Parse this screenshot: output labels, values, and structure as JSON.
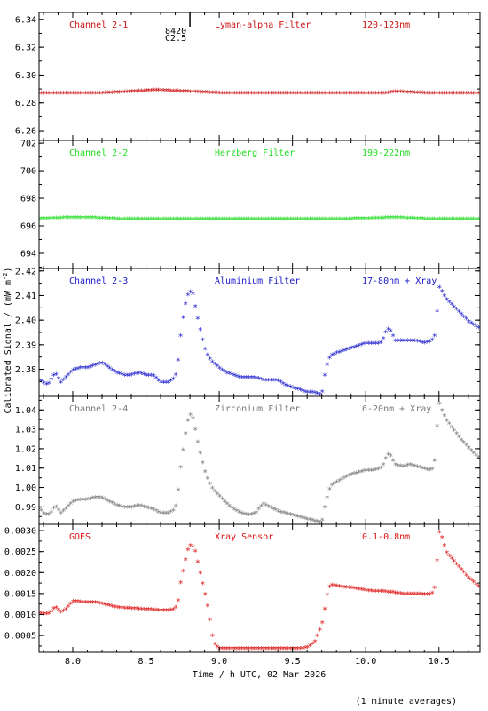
{
  "chart_data": {
    "type": "scatter",
    "xlabel": "Time / h UTC, 02 Mar 2026",
    "ylabel": "Calibrated Signal / (mW m",
    "ylabel_exp": "-2",
    "ylabel_close": ")",
    "xlim": [
      7.77,
      10.78
    ],
    "xticks": [
      "8.0",
      "8.5",
      "9.0",
      "9.5",
      "10.0",
      "10.5"
    ],
    "xtick_values": [
      8.0,
      8.5,
      9.0,
      9.5,
      10.0,
      10.5
    ],
    "footnote": "(1 minute averages)",
    "marker_annotation": {
      "x": 8.8,
      "line1": "8420",
      "line2": "C2.5"
    },
    "panels": [
      {
        "name": "Channel 2-1",
        "filter": "Lyman-alpha Filter",
        "range": "120-123nm",
        "color": "#cc1111",
        "ylim": [
          6.253,
          6.345
        ],
        "yticks": [
          "6.26",
          "6.28",
          "6.30",
          "6.32",
          "6.34"
        ],
        "ytick_values": [
          6.26,
          6.28,
          6.3,
          6.32,
          6.34
        ],
        "x": [
          7.77,
          8.0,
          8.2,
          8.4,
          8.55,
          8.6,
          8.8,
          9.0,
          9.2,
          9.4,
          9.6,
          9.8,
          10.0,
          10.15,
          10.2,
          10.4,
          10.6,
          10.78
        ],
        "y": [
          6.286,
          6.286,
          6.286,
          6.287,
          6.288,
          6.288,
          6.287,
          6.286,
          6.286,
          6.286,
          6.286,
          6.286,
          6.286,
          6.286,
          6.287,
          6.286,
          6.286,
          6.286
        ]
      },
      {
        "name": "Channel 2-2",
        "filter": "Herzberg Filter",
        "range": "190-222nm",
        "color": "#22dd22",
        "ylim": [
          692.9,
          702.2
        ],
        "yticks": [
          "694",
          "696",
          "698",
          "700",
          "702"
        ],
        "ytick_values": [
          694,
          696,
          698,
          700,
          702
        ],
        "x": [
          7.77,
          8.0,
          8.1,
          8.3,
          8.5,
          8.7,
          9.0,
          9.3,
          9.6,
          9.9,
          10.1,
          10.2,
          10.4,
          10.6,
          10.78
        ],
        "y": [
          696.4,
          696.5,
          696.5,
          696.4,
          696.4,
          696.4,
          696.4,
          696.4,
          696.4,
          696.4,
          696.45,
          696.5,
          696.4,
          696.4,
          696.4
        ]
      },
      {
        "name": "Channel 2-3",
        "filter": "Aluminium Filter",
        "range": "17-80nm + Xray",
        "color": "#1a1acc",
        "ylim": [
          2.369,
          2.421
        ],
        "yticks": [
          "2.38",
          "2.39",
          "2.40",
          "2.41",
          "2.42"
        ],
        "ytick_values": [
          2.38,
          2.39,
          2.4,
          2.41,
          2.42
        ],
        "x": [
          7.78,
          7.8,
          7.83,
          7.85,
          7.88,
          7.9,
          7.92,
          7.95,
          8.0,
          8.05,
          8.1,
          8.15,
          8.2,
          8.25,
          8.3,
          8.35,
          8.4,
          8.45,
          8.5,
          8.55,
          8.6,
          8.65,
          8.7,
          8.72,
          8.74,
          8.76,
          8.78,
          8.8,
          8.82,
          8.84,
          8.86,
          8.88,
          8.9,
          8.93,
          8.96,
          9.0,
          9.05,
          9.1,
          9.15,
          9.2,
          9.25,
          9.3,
          9.35,
          9.4,
          9.45,
          9.5,
          9.55,
          9.6,
          9.65,
          9.7,
          9.72,
          9.74,
          9.76,
          9.8,
          9.85,
          9.9,
          9.95,
          10.0,
          10.05,
          10.1,
          10.12,
          10.14,
          10.16,
          10.18,
          10.2,
          10.25,
          10.3,
          10.35,
          10.4,
          10.45,
          10.47,
          10.48,
          10.5,
          10.52,
          10.55,
          10.6,
          10.65,
          10.7,
          10.75,
          10.78
        ],
        "y": [
          2.375,
          2.374,
          2.373,
          2.375,
          2.378,
          2.376,
          2.374,
          2.376,
          2.379,
          2.38,
          2.38,
          2.381,
          2.382,
          2.38,
          2.378,
          2.377,
          2.377,
          2.378,
          2.377,
          2.377,
          2.374,
          2.374,
          2.376,
          2.383,
          2.395,
          2.403,
          2.409,
          2.411,
          2.41,
          2.404,
          2.398,
          2.393,
          2.388,
          2.384,
          2.382,
          2.38,
          2.378,
          2.377,
          2.376,
          2.376,
          2.376,
          2.375,
          2.375,
          2.375,
          2.373,
          2.372,
          2.371,
          2.37,
          2.37,
          2.369,
          2.377,
          2.382,
          2.385,
          2.386,
          2.387,
          2.388,
          2.389,
          2.39,
          2.39,
          2.39,
          2.392,
          2.395,
          2.396,
          2.394,
          2.391,
          2.391,
          2.391,
          2.391,
          2.39,
          2.391,
          2.393,
          2.398,
          2.413,
          2.411,
          2.408,
          2.405,
          2.402,
          2.399,
          2.397,
          2.396
        ]
      },
      {
        "name": "Channel 2-4",
        "filter": "Zirconium Filter",
        "range": "6-20nm + Xray",
        "color": "#7a7a7a",
        "ylim": [
          0.981,
          1.047
        ],
        "yticks": [
          "0.99",
          "1.00",
          "1.01",
          "1.02",
          "1.03",
          "1.04"
        ],
        "ytick_values": [
          0.99,
          1.0,
          1.01,
          1.02,
          1.03,
          1.04
        ],
        "x": [
          7.78,
          7.8,
          7.83,
          7.85,
          7.88,
          7.9,
          7.92,
          7.95,
          8.0,
          8.05,
          8.1,
          8.15,
          8.2,
          8.25,
          8.3,
          8.35,
          8.4,
          8.45,
          8.5,
          8.55,
          8.6,
          8.65,
          8.7,
          8.72,
          8.74,
          8.76,
          8.78,
          8.8,
          8.82,
          8.84,
          8.86,
          8.88,
          8.9,
          8.93,
          8.96,
          9.0,
          9.05,
          9.1,
          9.15,
          9.2,
          9.25,
          9.3,
          9.35,
          9.4,
          9.45,
          9.5,
          9.55,
          9.6,
          9.65,
          9.7,
          9.72,
          9.74,
          9.76,
          9.8,
          9.85,
          9.9,
          9.95,
          10.0,
          10.05,
          10.1,
          10.12,
          10.14,
          10.16,
          10.18,
          10.2,
          10.25,
          10.3,
          10.35,
          10.4,
          10.45,
          10.47,
          10.48,
          10.5,
          10.52,
          10.55,
          10.6,
          10.65,
          10.7,
          10.75,
          10.78
        ],
        "y": [
          0.988,
          0.986,
          0.985,
          0.986,
          0.99,
          0.988,
          0.986,
          0.988,
          0.992,
          0.993,
          0.993,
          0.994,
          0.994,
          0.992,
          0.99,
          0.989,
          0.989,
          0.99,
          0.989,
          0.988,
          0.986,
          0.986,
          0.988,
          0.998,
          1.012,
          1.022,
          1.032,
          1.037,
          1.035,
          1.028,
          1.02,
          1.014,
          1.008,
          1.002,
          0.998,
          0.995,
          0.991,
          0.988,
          0.986,
          0.985,
          0.986,
          0.991,
          0.989,
          0.987,
          0.986,
          0.985,
          0.984,
          0.983,
          0.982,
          0.981,
          0.989,
          0.995,
          1.0,
          1.002,
          1.004,
          1.006,
          1.007,
          1.008,
          1.008,
          1.009,
          1.011,
          1.015,
          1.017,
          1.014,
          1.011,
          1.01,
          1.011,
          1.01,
          1.009,
          1.008,
          1.013,
          1.025,
          1.043,
          1.039,
          1.034,
          1.029,
          1.024,
          1.02,
          1.016,
          1.014
        ]
      },
      {
        "name": "GOES",
        "filter": "Xray Sensor",
        "range": "0.1-0.8nm",
        "color": "#dd1111",
        "ylim": [
          0.0001,
          0.00315
        ],
        "yticks": [
          "0.0005",
          "0.0010",
          "0.0015",
          "0.0020",
          "0.0025",
          "0.0030"
        ],
        "ytick_values": [
          0.0005,
          0.001,
          0.0015,
          0.002,
          0.0025,
          0.003
        ],
        "x": [
          7.78,
          7.8,
          7.83,
          7.85,
          7.88,
          7.9,
          7.92,
          7.95,
          8.0,
          8.05,
          8.1,
          8.15,
          8.2,
          8.25,
          8.3,
          8.35,
          8.4,
          8.45,
          8.5,
          8.55,
          8.6,
          8.65,
          8.7,
          8.72,
          8.74,
          8.76,
          8.78,
          8.8,
          8.82,
          8.84,
          8.86,
          8.88,
          8.9,
          8.93,
          8.96,
          9.0,
          9.05,
          9.1,
          9.15,
          9.2,
          9.25,
          9.3,
          9.35,
          9.4,
          9.45,
          9.5,
          9.55,
          9.6,
          9.65,
          9.7,
          9.72,
          9.74,
          9.76,
          9.8,
          9.85,
          9.9,
          9.95,
          10.0,
          10.05,
          10.1,
          10.12,
          10.14,
          10.16,
          10.18,
          10.2,
          10.25,
          10.3,
          10.35,
          10.4,
          10.45,
          10.47,
          10.48,
          10.5,
          10.52,
          10.55,
          10.6,
          10.65,
          10.7,
          10.75,
          10.78
        ],
        "y": [
          0.001,
          0.00098,
          0.00098,
          0.00102,
          0.00115,
          0.00108,
          0.00102,
          0.00108,
          0.00128,
          0.00127,
          0.00125,
          0.00126,
          0.00122,
          0.00118,
          0.00114,
          0.00112,
          0.00111,
          0.0011,
          0.00108,
          0.00108,
          0.00106,
          0.00106,
          0.0011,
          0.0013,
          0.0018,
          0.0021,
          0.00245,
          0.00262,
          0.00258,
          0.00245,
          0.0021,
          0.0018,
          0.0015,
          0.001,
          0.0003,
          0.00015,
          0.00015,
          0.00015,
          0.00015,
          0.00015,
          0.00015,
          0.00015,
          0.00015,
          0.00015,
          0.00015,
          0.00015,
          0.00015,
          0.00018,
          0.0003,
          0.0007,
          0.0011,
          0.0015,
          0.00168,
          0.00165,
          0.00162,
          0.0016,
          0.00158,
          0.00154,
          0.00152,
          0.00152,
          0.00152,
          0.0015,
          0.0015,
          0.0015,
          0.00148,
          0.00146,
          0.00146,
          0.00146,
          0.00144,
          0.00145,
          0.0016,
          0.0019,
          0.00295,
          0.0028,
          0.00245,
          0.00225,
          0.00205,
          0.00185,
          0.0017,
          0.0016
        ]
      }
    ]
  }
}
